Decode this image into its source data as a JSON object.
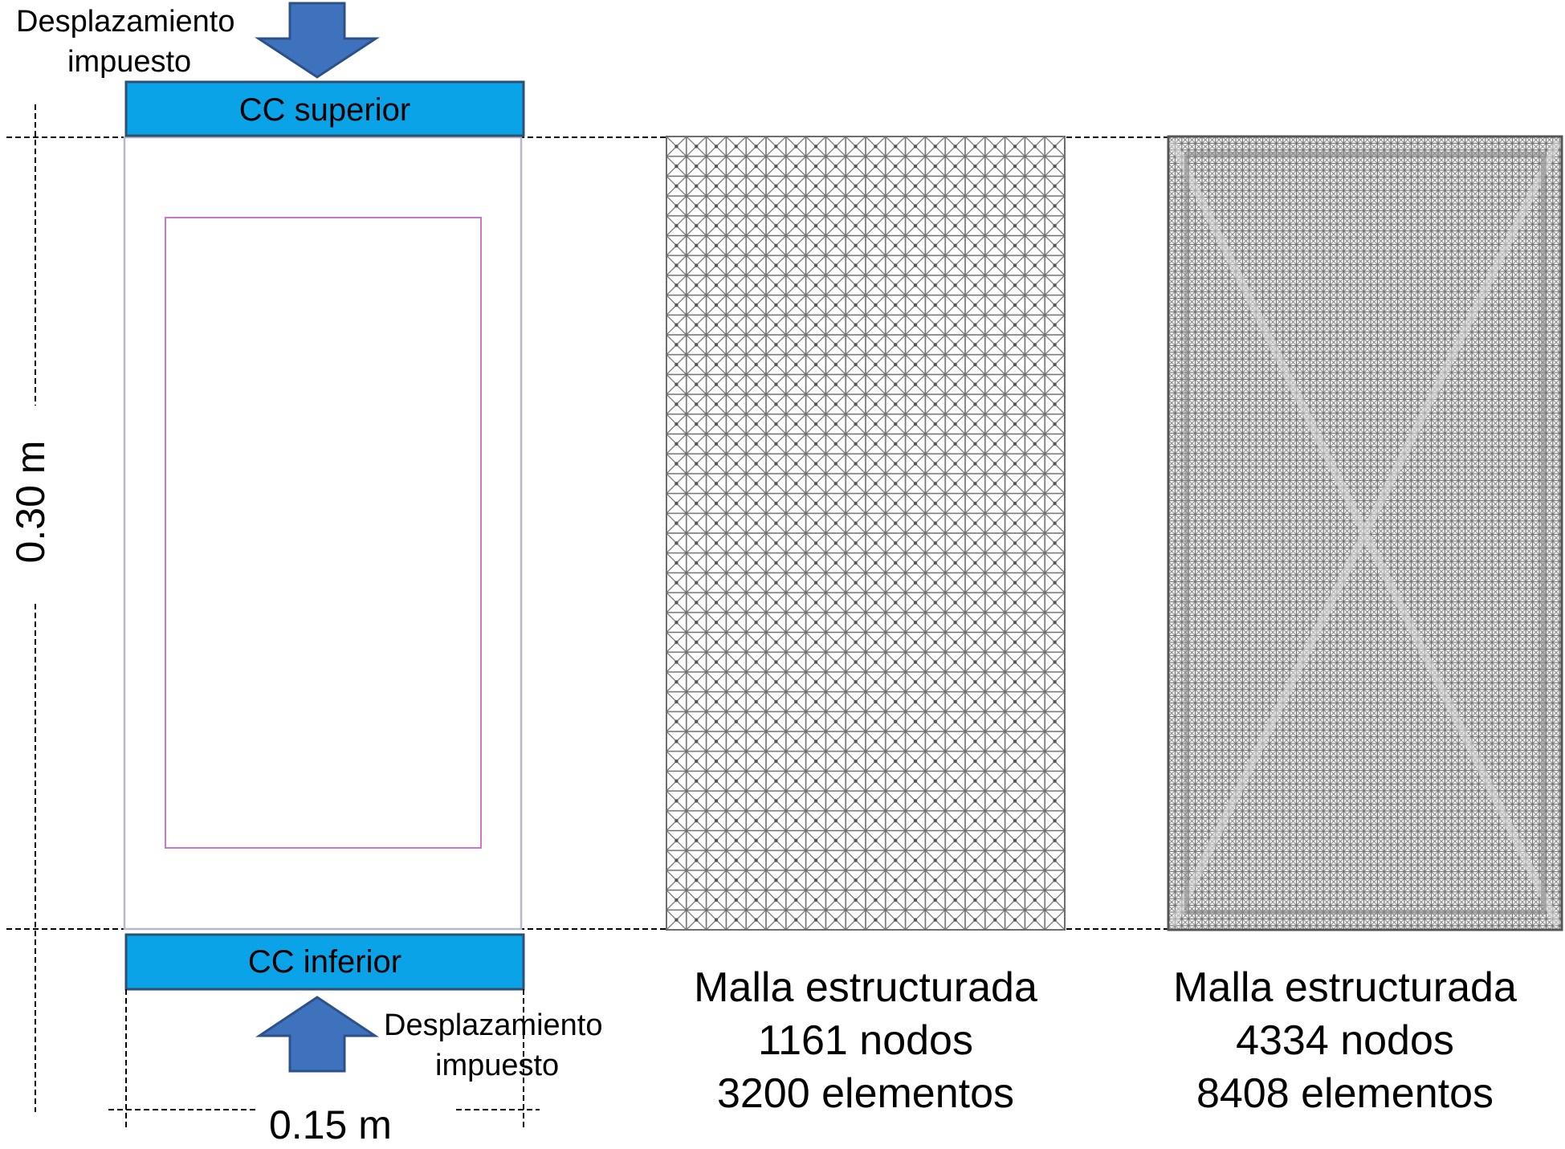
{
  "colors": {
    "boundary_bar": "#0aa3e8",
    "boundary_border": "#2f4f6f",
    "arrow_fill": "#3f72bc",
    "arrow_stroke": "#2c518a",
    "inner_rect": "#c878c8",
    "specimen_outline": "#b8b8c8",
    "mesh_line": "#6e6e6e"
  },
  "left_panel": {
    "top_load_label": [
      "Desplazamiento",
      "impuesto"
    ],
    "top_bc_label": "CC superior",
    "bottom_bc_label": "CC inferior",
    "bottom_load_label": [
      "Desplazamiento",
      "impuesto"
    ],
    "height_dimension": "0.30 m",
    "width_dimension": "0.15 m"
  },
  "meshes": [
    {
      "title": "Malla estructurada",
      "nodes": "1161 nodos",
      "elements": "3200 elementos"
    },
    {
      "title": "Malla estructurada",
      "nodes": "4334 nodos",
      "elements": "8408 elementos"
    }
  ]
}
